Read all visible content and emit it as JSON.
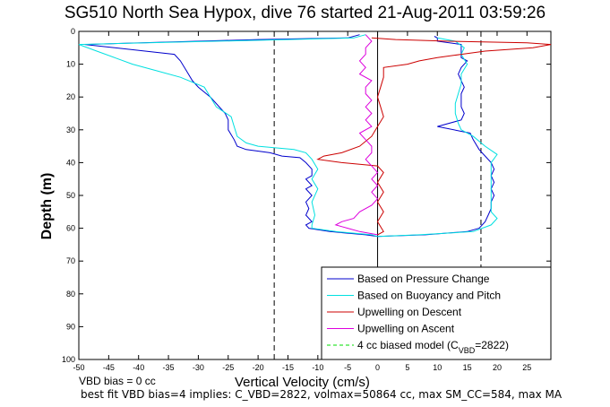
{
  "title": "SG510 North Sea Hypox, dive 76 started 21-Aug-2011 03:59:26",
  "xlabel": "Vertical Velocity (cm/s)",
  "ylabel": "Depth (m)",
  "notes": {
    "bias": "VBD bias = 0 cc",
    "fit": "best fit VBD bias=4 implies: C_VBD=2822, volmax=50864 cc, max SM_CC=584, max MA"
  },
  "chart_data": {
    "type": "line",
    "xlim": [
      -50,
      29
    ],
    "ylim": [
      0,
      100
    ],
    "y_reversed": true,
    "x_ticks": [
      -50,
      -45,
      -40,
      -35,
      -30,
      -25,
      -20,
      -15,
      -10,
      -5,
      0,
      5,
      10,
      15,
      20,
      25
    ],
    "y_ticks": [
      0,
      10,
      20,
      30,
      40,
      50,
      60,
      70,
      80,
      90,
      100
    ],
    "grid": false,
    "legend_position": "bottom-right",
    "vlines": [
      {
        "x": -17.3,
        "style": "dashed",
        "color": "#000000"
      },
      {
        "x": 0,
        "style": "solid",
        "color": "#000000"
      },
      {
        "x": 17.3,
        "style": "dashed",
        "color": "#000000"
      }
    ],
    "series": [
      {
        "name": "Based on Pressure Change",
        "color": "#0000cc",
        "points": [
          [
            -3,
            1
          ],
          [
            -5,
            2
          ],
          [
            -20,
            2.5
          ],
          [
            -49,
            4
          ],
          [
            -34,
            7
          ],
          [
            -33,
            9
          ],
          [
            -32,
            12
          ],
          [
            -31,
            15
          ],
          [
            -30,
            17
          ],
          [
            -28,
            20
          ],
          [
            -27,
            22
          ],
          [
            -25.5,
            25
          ],
          [
            -25,
            27
          ],
          [
            -25,
            30
          ],
          [
            -24,
            33
          ],
          [
            -23.5,
            35
          ],
          [
            -22,
            36
          ],
          [
            -18,
            37
          ],
          [
            -16,
            38
          ],
          [
            -13,
            38.5
          ],
          [
            -12,
            40
          ],
          [
            -11,
            42
          ],
          [
            -11,
            44
          ],
          [
            -12,
            45
          ],
          [
            -11,
            47
          ],
          [
            -12,
            48
          ],
          [
            -11,
            50
          ],
          [
            -12,
            52
          ],
          [
            -11.5,
            54
          ],
          [
            -12,
            56
          ],
          [
            -11,
            58
          ],
          [
            -12,
            59
          ],
          [
            -11.5,
            60
          ],
          [
            -8,
            61
          ],
          [
            -2,
            62
          ],
          [
            0,
            62.5
          ],
          [
            8,
            62
          ],
          [
            15,
            61
          ],
          [
            17,
            60
          ],
          [
            18,
            58
          ],
          [
            18.5,
            56
          ],
          [
            19,
            54
          ],
          [
            19,
            52
          ],
          [
            19.5,
            50
          ],
          [
            19,
            48
          ],
          [
            19.5,
            46
          ],
          [
            19,
            44
          ],
          [
            19.5,
            42
          ],
          [
            19,
            40
          ],
          [
            18,
            38
          ],
          [
            17,
            36
          ],
          [
            16,
            33
          ],
          [
            15.5,
            31
          ],
          [
            10,
            29
          ],
          [
            14,
            27
          ],
          [
            14.5,
            25
          ],
          [
            14,
            23
          ],
          [
            14,
            21
          ],
          [
            14,
            19
          ],
          [
            14.5,
            17
          ],
          [
            14,
            15
          ],
          [
            13.5,
            13
          ],
          [
            14,
            11
          ],
          [
            15,
            9
          ],
          [
            14,
            8
          ],
          [
            14,
            6
          ],
          [
            14,
            4
          ],
          [
            10,
            3
          ],
          [
            10,
            2
          ],
          [
            9.5,
            1.5
          ]
        ]
      },
      {
        "name": "Based on Buoyancy and Pitch",
        "color": "#00e0e0",
        "points": [
          [
            -2,
            1
          ],
          [
            -4,
            2
          ],
          [
            -15,
            2.5
          ],
          [
            -50,
            4
          ],
          [
            -47,
            6
          ],
          [
            -44,
            8
          ],
          [
            -41,
            10
          ],
          [
            -37,
            12
          ],
          [
            -33,
            14
          ],
          [
            -29,
            17
          ],
          [
            -28,
            20
          ],
          [
            -27,
            23
          ],
          [
            -24.5,
            26
          ],
          [
            -24,
            29
          ],
          [
            -23.5,
            32
          ],
          [
            -22,
            34
          ],
          [
            -20,
            35
          ],
          [
            -14,
            36
          ],
          [
            -12,
            37
          ],
          [
            -11,
            39
          ],
          [
            -10,
            42
          ],
          [
            -11,
            45
          ],
          [
            -10,
            48
          ],
          [
            -11,
            52
          ],
          [
            -10.5,
            56
          ],
          [
            -11,
            59
          ],
          [
            -11,
            60
          ],
          [
            -7,
            61
          ],
          [
            -1,
            62
          ],
          [
            0,
            62.5
          ],
          [
            7,
            62
          ],
          [
            16,
            61
          ],
          [
            19,
            59
          ],
          [
            20,
            57
          ],
          [
            19,
            55
          ],
          [
            19,
            52
          ],
          [
            19,
            49
          ],
          [
            19,
            46
          ],
          [
            19,
            43
          ],
          [
            19,
            40
          ],
          [
            20,
            37.5
          ],
          [
            18,
            35
          ],
          [
            16,
            32
          ],
          [
            14,
            30
          ],
          [
            13.5,
            28
          ],
          [
            13,
            25
          ],
          [
            13,
            22
          ],
          [
            13.5,
            19
          ],
          [
            14,
            16
          ],
          [
            14,
            13
          ],
          [
            15,
            10
          ],
          [
            14,
            7
          ],
          [
            14.5,
            5
          ],
          [
            13,
            3
          ],
          [
            10,
            2
          ]
        ]
      },
      {
        "name": "Upwelling on Descent",
        "color": "#cc0000",
        "points": [
          [
            -1,
            2
          ],
          [
            3,
            2.5
          ],
          [
            12,
            3
          ],
          [
            25,
            3.5
          ],
          [
            29,
            4
          ],
          [
            26,
            5
          ],
          [
            18,
            6
          ],
          [
            14,
            7
          ],
          [
            10,
            8
          ],
          [
            7,
            9
          ],
          [
            5,
            10
          ],
          [
            1,
            11
          ],
          [
            1,
            14
          ],
          [
            0.5,
            17
          ],
          [
            0,
            20
          ],
          [
            0.5,
            23
          ],
          [
            1,
            26
          ],
          [
            0,
            29
          ],
          [
            -1,
            32
          ],
          [
            -3,
            35
          ],
          [
            -6,
            37
          ],
          [
            -9,
            38
          ],
          [
            -10,
            39
          ],
          [
            -6,
            40
          ],
          [
            -3,
            40.5
          ],
          [
            0,
            41
          ],
          [
            1,
            43
          ],
          [
            0,
            46
          ],
          [
            1,
            49
          ],
          [
            0,
            52
          ],
          [
            1,
            55
          ],
          [
            0,
            58
          ],
          [
            1,
            61
          ],
          [
            0,
            62
          ]
        ]
      },
      {
        "name": "Upwelling on Ascent",
        "color": "#dd00dd",
        "points": [
          [
            0,
            62
          ],
          [
            -3,
            61
          ],
          [
            -5,
            60
          ],
          [
            -7,
            59
          ],
          [
            -6,
            58
          ],
          [
            -4,
            57
          ],
          [
            -3,
            55
          ],
          [
            -1,
            53
          ],
          [
            0,
            51
          ],
          [
            -1,
            49
          ],
          [
            0,
            47
          ],
          [
            -1,
            45
          ],
          [
            0,
            43
          ],
          [
            -1,
            41
          ],
          [
            -2,
            39
          ],
          [
            -1,
            37
          ],
          [
            -1,
            35
          ],
          [
            -2,
            33
          ],
          [
            -3,
            31
          ],
          [
            -1,
            29
          ],
          [
            -2,
            27
          ],
          [
            -1,
            25
          ],
          [
            -2,
            23
          ],
          [
            -1,
            21
          ],
          [
            -2,
            19
          ],
          [
            -2,
            17
          ],
          [
            -1,
            15
          ],
          [
            -3,
            13
          ],
          [
            -2,
            11
          ],
          [
            -3,
            9
          ],
          [
            -2,
            7
          ],
          [
            -2,
            5
          ],
          [
            -1,
            3
          ],
          [
            -2,
            1
          ]
        ]
      },
      {
        "name": "4 cc biased model (C",
        "color": "#00dd00",
        "dashed": true,
        "points": []
      }
    ]
  },
  "legend": {
    "items": [
      {
        "label": "Based on Pressure Change",
        "color": "#0000cc",
        "dashed": false
      },
      {
        "label": "Based on Buoyancy and Pitch",
        "color": "#00e0e0",
        "dashed": false
      },
      {
        "label": "Upwelling on Descent",
        "color": "#cc0000",
        "dashed": false
      },
      {
        "label": "Upwelling on Ascent",
        "color": "#dd00dd",
        "dashed": false
      },
      {
        "label": "4 cc biased model (C",
        "color": "#00dd00",
        "dashed": true,
        "sub": "VBD",
        "suffix": "=2822)"
      }
    ]
  }
}
